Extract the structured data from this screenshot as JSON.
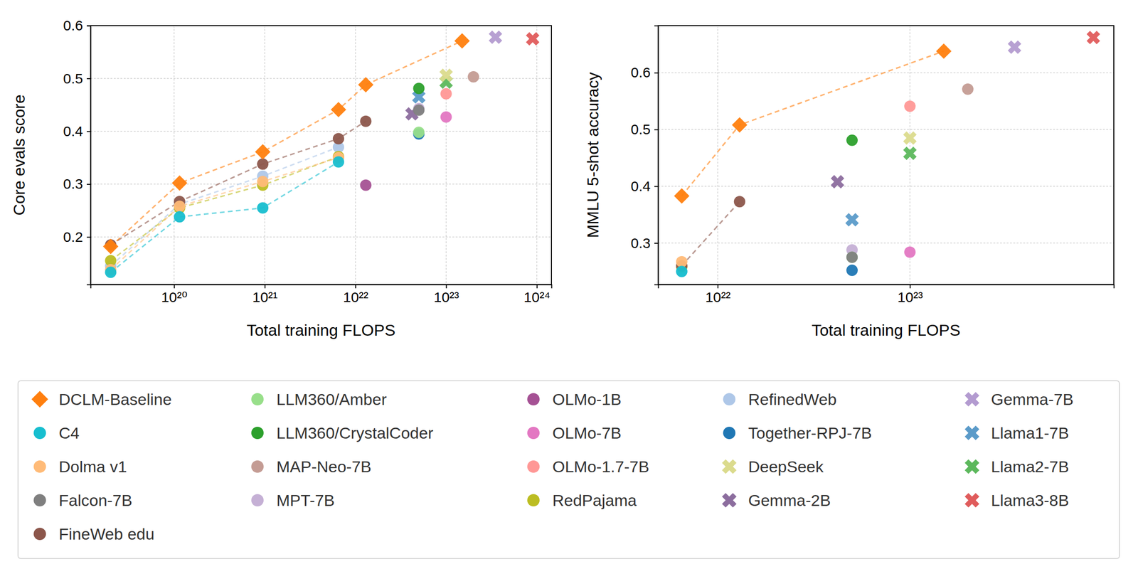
{
  "chart_data": [
    {
      "type": "scatter",
      "x_label": "Total training FLOPS",
      "y_label": "Core evals score",
      "log": "x",
      "grid": true,
      "legend": "bottom",
      "xlim": [
        1.2e+19,
        1.45e+24
      ],
      "xticks": [
        {
          "value": 1e+20,
          "label": "10²⁰"
        },
        {
          "value": 1e+21,
          "label": "10²¹"
        },
        {
          "value": 1e+22,
          "label": "10²²"
        },
        {
          "value": 1e+23,
          "label": "10²³"
        },
        {
          "value": 1e+24,
          "label": "10²⁴"
        }
      ],
      "ylim": [
        0.11,
        0.6
      ],
      "yticks": [
        0.2,
        0.3,
        0.4,
        0.5,
        0.6
      ],
      "series": [
        {
          "name": "DCLM-Baseline",
          "color": "#ff7f0e",
          "marker": "diamond",
          "line_style": "dashed",
          "x": [
            2e+19,
            1.15e+20,
            9.5e+20,
            6.5e+21,
            1.3e+22,
            1.5e+23
          ],
          "values": [
            0.182,
            0.302,
            0.361,
            0.441,
            0.488,
            0.571
          ]
        },
        {
          "name": "C4",
          "color": "#17becf",
          "marker": "circle",
          "line_style": "dashed",
          "x": [
            2e+19,
            1.15e+20,
            9.5e+20,
            6.5e+21
          ],
          "values": [
            0.133,
            0.238,
            0.255,
            0.342
          ]
        },
        {
          "name": "Dolma v1",
          "color": "#ffbb78",
          "marker": "circle",
          "line_style": "dashed",
          "x": [
            2e+19,
            1.15e+20,
            9.5e+20,
            6.5e+21
          ],
          "values": [
            0.138,
            0.258,
            0.305,
            0.35
          ]
        },
        {
          "name": "Falcon-7B",
          "color": "#7f7f7f",
          "marker": "circle",
          "x": [
            5e+22
          ],
          "values": [
            0.44
          ]
        },
        {
          "name": "FineWeb edu",
          "color": "#8c564b",
          "marker": "circle",
          "line_style": "dashed",
          "x": [
            2e+19,
            1.15e+20,
            9.5e+20,
            6.5e+21,
            1.3e+22
          ],
          "values": [
            0.185,
            0.267,
            0.338,
            0.386,
            0.419
          ]
        },
        {
          "name": "LLM360/Amber",
          "color": "#98df8a",
          "marker": "circle",
          "x": [
            5e+22
          ],
          "values": [
            0.398
          ]
        },
        {
          "name": "LLM360/CrystalCoder",
          "color": "#2ca02c",
          "marker": "circle",
          "x": [
            5e+22
          ],
          "values": [
            0.481
          ]
        },
        {
          "name": "MAP-Neo-7B",
          "color": "#c49c94",
          "marker": "circle",
          "x": [
            2e+23
          ],
          "values": [
            0.503
          ]
        },
        {
          "name": "MPT-7B",
          "color": "#c5b0d5",
          "marker": "circle",
          "x": [
            5e+22
          ],
          "values": [
            0.443
          ]
        },
        {
          "name": "OLMo-1B",
          "color": "#a55194",
          "marker": "circle",
          "x": [
            1.3e+22
          ],
          "values": [
            0.298
          ]
        },
        {
          "name": "OLMo-7B",
          "color": "#e377c2",
          "marker": "circle",
          "x": [
            1e+23
          ],
          "values": [
            0.427
          ]
        },
        {
          "name": "OLMo-1.7-7B",
          "color": "#ff9896",
          "marker": "circle",
          "x": [
            1e+23
          ],
          "values": [
            0.471
          ]
        },
        {
          "name": "RedPajama",
          "color": "#bcbd22",
          "marker": "circle",
          "line_style": "dashed",
          "x": [
            2e+19,
            1.15e+20,
            9.5e+20,
            6.5e+21
          ],
          "values": [
            0.155,
            0.255,
            0.298,
            0.352
          ]
        },
        {
          "name": "RefinedWeb",
          "color": "#aec7e8",
          "marker": "circle",
          "line_style": "dashed",
          "x": [
            2e+19,
            1.15e+20,
            9.5e+20,
            6.5e+21
          ],
          "values": [
            0.145,
            0.262,
            0.315,
            0.37
          ]
        },
        {
          "name": "Together-RPJ-7B",
          "color": "#1f77b4",
          "marker": "circle",
          "x": [
            5e+22
          ],
          "values": [
            0.395
          ]
        },
        {
          "name": "DeepSeek",
          "color": "#dbdb8d",
          "marker": "x",
          "x": [
            1e+23
          ],
          "values": [
            0.506
          ]
        },
        {
          "name": "Gemma-2B",
          "color": "#8c6d9e",
          "marker": "x",
          "x": [
            4.2e+22
          ],
          "values": [
            0.433
          ]
        },
        {
          "name": "Gemma-7B",
          "color": "#b39bd0",
          "marker": "x",
          "x": [
            3.5e+23
          ],
          "values": [
            0.578
          ]
        },
        {
          "name": "Llama1-7B",
          "color": "#5b9bc9",
          "marker": "x",
          "x": [
            5e+22
          ],
          "values": [
            0.465
          ]
        },
        {
          "name": "Llama2-7B",
          "color": "#5cb85c",
          "marker": "x",
          "x": [
            1e+23
          ],
          "values": [
            0.493
          ]
        },
        {
          "name": "Llama3-8B",
          "color": "#e05c5c",
          "marker": "x",
          "x": [
            9e+23
          ],
          "values": [
            0.575
          ]
        }
      ]
    },
    {
      "type": "scatter",
      "x_label": "Total training FLOPS",
      "y_label": "MMLU 5-shot accuracy",
      "log": "x",
      "grid": true,
      "xlim": [
        4.9e+21,
        1.15e+24
      ],
      "xticks": [
        {
          "value": 1e+22,
          "label": "10²²"
        },
        {
          "value": 1e+23,
          "label": "10²³"
        }
      ],
      "ylim": [
        0.227,
        0.683
      ],
      "yticks": [
        0.3,
        0.4,
        0.5,
        0.6
      ],
      "series": [
        {
          "name": "DCLM-Baseline",
          "color": "#ff7f0e",
          "marker": "diamond",
          "line_style": "dashed",
          "x": [
            6.5e+21,
            1.3e+22,
            1.5e+23
          ],
          "values": [
            0.383,
            0.508,
            0.638
          ]
        },
        {
          "name": "C4",
          "color": "#17becf",
          "marker": "circle",
          "x": [
            6.5e+21
          ],
          "values": [
            0.25
          ]
        },
        {
          "name": "Dolma v1",
          "color": "#ffbb78",
          "marker": "circle",
          "x": [
            6.5e+21
          ],
          "values": [
            0.267
          ]
        },
        {
          "name": "Falcon-7B",
          "color": "#7f7f7f",
          "marker": "circle",
          "x": [
            5e+22
          ],
          "values": [
            0.275
          ]
        },
        {
          "name": "FineWeb edu",
          "color": "#8c564b",
          "marker": "circle",
          "line_style": "dashed",
          "x": [
            6.5e+21,
            1.3e+22
          ],
          "values": [
            0.26,
            0.373
          ]
        },
        {
          "name": "LLM360/Amber",
          "color": "#98df8a",
          "marker": "circle",
          "x": [
            5e+22
          ],
          "values": [
            0.275
          ]
        },
        {
          "name": "LLM360/CrystalCoder",
          "color": "#2ca02c",
          "marker": "circle",
          "x": [
            5e+22
          ],
          "values": [
            0.481
          ]
        },
        {
          "name": "MAP-Neo-7B",
          "color": "#c49c94",
          "marker": "circle",
          "x": [
            2e+23
          ],
          "values": [
            0.571
          ]
        },
        {
          "name": "MPT-7B",
          "color": "#c5b0d5",
          "marker": "circle",
          "x": [
            5e+22
          ],
          "values": [
            0.288
          ]
        },
        {
          "name": "OLMo-7B",
          "color": "#e377c2",
          "marker": "circle",
          "x": [
            1e+23
          ],
          "values": [
            0.284
          ]
        },
        {
          "name": "OLMo-1.7-7B",
          "color": "#ff9896",
          "marker": "circle",
          "x": [
            1e+23
          ],
          "values": [
            0.541
          ]
        },
        {
          "name": "RedPajama",
          "color": "#bcbd22",
          "marker": "circle",
          "x": [
            6.5e+21
          ],
          "values": [
            0.258
          ]
        },
        {
          "name": "RefinedWeb",
          "color": "#aec7e8",
          "marker": "circle",
          "x": [
            6.5e+21
          ],
          "values": [
            0.25
          ]
        },
        {
          "name": "Together-RPJ-7B",
          "color": "#1f77b4",
          "marker": "circle",
          "x": [
            5e+22
          ],
          "values": [
            0.252
          ]
        },
        {
          "name": "DeepSeek",
          "color": "#dbdb8d",
          "marker": "x",
          "x": [
            1e+23
          ],
          "values": [
            0.485
          ]
        },
        {
          "name": "Gemma-2B",
          "color": "#8c6d9e",
          "marker": "x",
          "x": [
            4.2e+22
          ],
          "values": [
            0.408
          ]
        },
        {
          "name": "Gemma-7B",
          "color": "#b39bd0",
          "marker": "x",
          "x": [
            3.5e+23
          ],
          "values": [
            0.645
          ]
        },
        {
          "name": "Llama1-7B",
          "color": "#5b9bc9",
          "marker": "x",
          "x": [
            5e+22
          ],
          "values": [
            0.341
          ]
        },
        {
          "name": "Llama2-7B",
          "color": "#5cb85c",
          "marker": "x",
          "x": [
            1e+23
          ],
          "values": [
            0.458
          ]
        },
        {
          "name": "Llama3-8B",
          "color": "#e05c5c",
          "marker": "x",
          "x": [
            9e+23
          ],
          "values": [
            0.662
          ]
        }
      ]
    }
  ]
}
